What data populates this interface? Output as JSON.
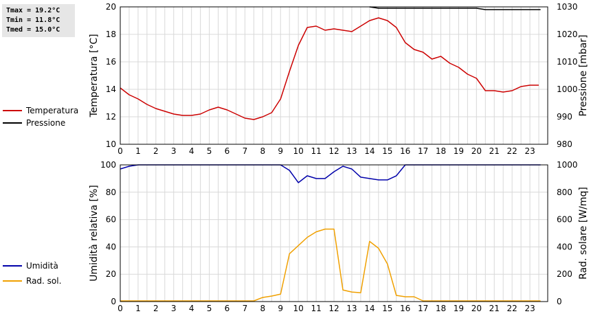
{
  "stats": {
    "tmax": "Tmax = 19.2°C",
    "tmin": "Tmin = 11.8°C",
    "tmed": "Tmed = 15.0°C"
  },
  "legend_top": [
    {
      "label": "Temperatura",
      "color": "#cc0000"
    },
    {
      "label": "Pressione",
      "color": "#000000"
    }
  ],
  "legend_bottom": [
    {
      "label": "Umidità",
      "color": "#0000aa"
    },
    {
      "label": "Rad. sol.",
      "color": "#f0a000"
    }
  ],
  "chart_data": [
    {
      "type": "line",
      "title": "",
      "xlabel": "",
      "ylabel": "Temperatura [°C]",
      "y2label": "Pressione [mbar]",
      "xlim": [
        0,
        24
      ],
      "ylim": [
        10,
        20
      ],
      "y2lim": [
        980,
        1030
      ],
      "x_ticks": [
        "0",
        "1",
        "2",
        "3",
        "4",
        "5",
        "6",
        "7",
        "8",
        "9",
        "10",
        "11",
        "12",
        "13",
        "14",
        "15",
        "16",
        "17",
        "18",
        "19",
        "20",
        "21",
        "22",
        "23"
      ],
      "y_ticks": [
        "10",
        "12",
        "14",
        "16",
        "18",
        "20"
      ],
      "y2_ticks": [
        "980",
        "990",
        "1000",
        "1010",
        "1020",
        "1030"
      ],
      "grid": true,
      "series": [
        {
          "name": "Temperatura",
          "axis": "left",
          "color": "#cc0000",
          "x": [
            0,
            0.5,
            1,
            1.5,
            2,
            2.5,
            3,
            3.5,
            4,
            4.5,
            5,
            5.5,
            6,
            6.5,
            7,
            7.5,
            8,
            8.5,
            9,
            9.5,
            10,
            10.5,
            11,
            11.5,
            12,
            12.5,
            13,
            13.5,
            14,
            14.5,
            15,
            15.5,
            16,
            16.5,
            17,
            17.5,
            18,
            18.5,
            19,
            19.5,
            20,
            20.5,
            21,
            21.5,
            22,
            22.5,
            23,
            23.5
          ],
          "values": [
            14.1,
            13.6,
            13.3,
            12.9,
            12.6,
            12.4,
            12.2,
            12.1,
            12.1,
            12.2,
            12.5,
            12.7,
            12.5,
            12.2,
            11.9,
            11.8,
            12.0,
            12.3,
            13.3,
            15.3,
            17.2,
            18.5,
            18.6,
            18.3,
            18.4,
            18.3,
            18.2,
            18.6,
            19.0,
            19.2,
            19.0,
            18.5,
            17.4,
            16.9,
            16.7,
            16.2,
            16.4,
            15.9,
            15.6,
            15.1,
            14.8,
            13.9,
            13.9,
            13.8,
            13.9,
            14.2,
            14.3,
            14.3
          ]
        },
        {
          "name": "Pressione",
          "axis": "right",
          "color": "#000000",
          "x": [
            14,
            14.5,
            15,
            16,
            17,
            18,
            19,
            20,
            20.5,
            21,
            22,
            23,
            23.6
          ],
          "values": [
            1030,
            1029.5,
            1029.5,
            1029.5,
            1029.5,
            1029.5,
            1029.5,
            1029.5,
            1029,
            1029,
            1029,
            1029,
            1029
          ]
        }
      ]
    },
    {
      "type": "line",
      "title": "",
      "xlabel": "",
      "ylabel": "Umidità relativa [%]",
      "y2label": "Rad. solare [W/mq]",
      "xlim": [
        0,
        24
      ],
      "ylim": [
        0,
        100
      ],
      "y2lim": [
        0,
        1000
      ],
      "x_ticks": [
        "0",
        "1",
        "2",
        "3",
        "4",
        "5",
        "6",
        "7",
        "8",
        "9",
        "10",
        "11",
        "12",
        "13",
        "14",
        "15",
        "16",
        "17",
        "18",
        "19",
        "20",
        "21",
        "22",
        "23"
      ],
      "y_ticks": [
        "0",
        "20",
        "40",
        "60",
        "80",
        "100"
      ],
      "y2_ticks": [
        "0",
        "200",
        "400",
        "600",
        "800",
        "1000"
      ],
      "grid": true,
      "series": [
        {
          "name": "Umidità",
          "axis": "left",
          "color": "#0000aa",
          "x": [
            0,
            0.5,
            1,
            1.5,
            2,
            3,
            4,
            5,
            6,
            7,
            8,
            9,
            9.5,
            10,
            10.5,
            11,
            11.5,
            12,
            12.5,
            13,
            13.5,
            14,
            14.5,
            15,
            15.5,
            16,
            16.5,
            17,
            18,
            19,
            20,
            21,
            22,
            23,
            23.6
          ],
          "values": [
            97,
            99,
            100,
            100,
            100,
            100,
            100,
            100,
            100,
            100,
            100,
            100,
            96,
            87,
            92,
            90,
            90,
            95,
            99,
            97,
            91,
            90,
            89,
            89,
            92,
            100,
            100,
            100,
            100,
            100,
            100,
            100,
            100,
            100,
            100
          ]
        },
        {
          "name": "Rad. sol.",
          "axis": "right",
          "color": "#f0a000",
          "x": [
            0,
            1,
            2,
            3,
            4,
            5,
            6,
            7,
            7.5,
            8,
            8.5,
            9,
            9.5,
            10,
            10.5,
            11,
            11.5,
            12,
            12.5,
            13,
            13.5,
            14,
            14.5,
            15,
            15.5,
            16,
            16.5,
            17,
            18,
            19,
            20,
            21,
            22,
            23,
            23.6
          ],
          "values": [
            5,
            5,
            5,
            5,
            5,
            5,
            5,
            5,
            5,
            30,
            40,
            55,
            350,
            410,
            470,
            510,
            530,
            530,
            85,
            70,
            65,
            440,
            390,
            275,
            45,
            35,
            35,
            5,
            5,
            5,
            5,
            5,
            5,
            5,
            5
          ]
        }
      ]
    }
  ]
}
